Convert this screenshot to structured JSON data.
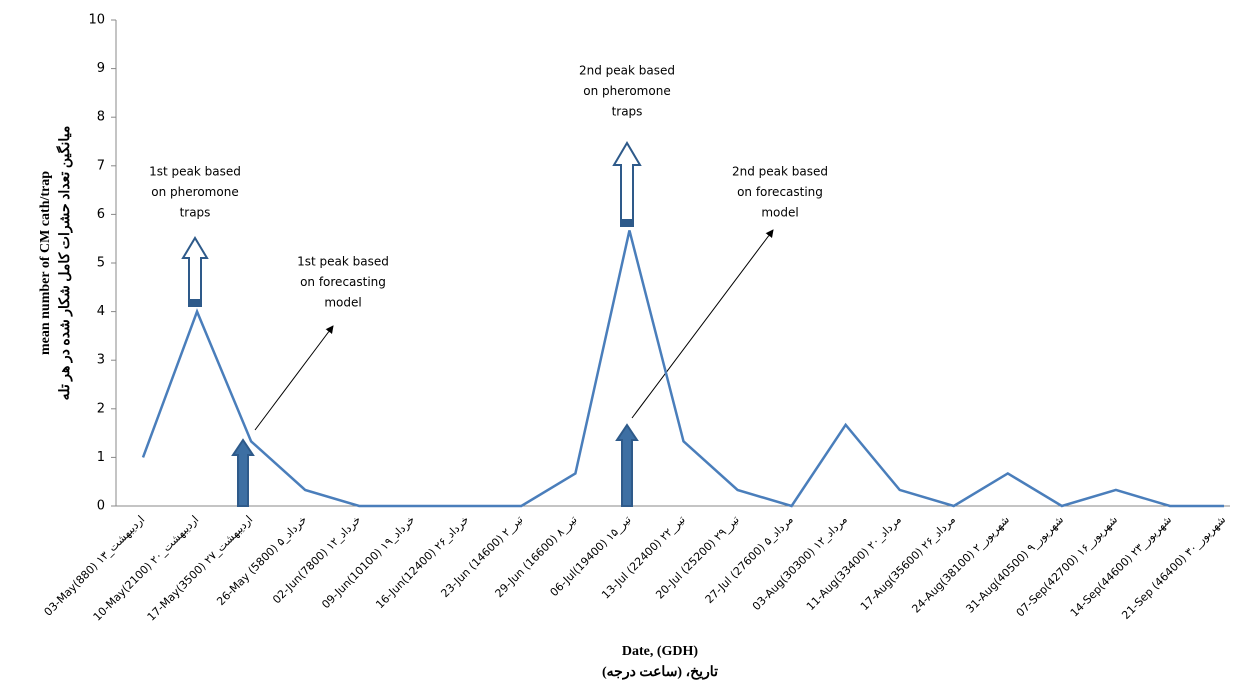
{
  "chart_data": {
    "type": "line",
    "categories": [
      "03-May(880) اردیبهشت_۱۳",
      "10-May(2100) اردیبهشت_۲۰",
      "17-May(3500) اردیبهشت_۲۷",
      "26-May (5800) خرداد_۵",
      "02-Jun(7800) خرداد_۱۲",
      "09-Jun(10100) خرداد_۱۹",
      "16-Jun(12400) خرداد_۲۶",
      "23-Jun (14600) تیر_۲",
      "29-Jun (16600) تیر_۸",
      "06-Jul(19400) تیر_۱۵",
      "13-Jul (22400) تیر_۲۲",
      "20-Jul (25200) تیر_۲۹",
      "27-Jul (27600) مرداد_۵",
      "03-Aug(30300) مرداد_۱۲",
      "11-Aug(33400) مرداد_۲۰",
      "17-Aug(35600) مرداد_۲۶",
      "24-Aug(38100) شهریور_۲",
      "31-Aug(40500) شهریور_۹",
      "07-Sep(42700) شهریور_۱۶",
      "14-Sep(44600) شهریور_۲۳",
      "21-Sep (46400) شهریور_۳۰"
    ],
    "series": [
      {
        "color": "#4a7ebb",
        "values": [
          1,
          4,
          1.33,
          0.33,
          0,
          0,
          0,
          0,
          0.67,
          5.67,
          1.33,
          0.33,
          0,
          1.67,
          0.33,
          0,
          0.67,
          0,
          0.33,
          0,
          0
        ]
      }
    ],
    "ylim": [
      0,
      10
    ],
    "yticks": [
      0,
      1,
      2,
      3,
      4,
      5,
      6,
      7,
      8,
      9,
      10
    ],
    "y_label": [
      "mean number of CM cath/trap",
      "میانگین تعداد حشرات کامل شکار شده در هر تله"
    ],
    "x_label": [
      "Date, (GDH)",
      "تاریخ، (ساعت درجه)"
    ],
    "annotations": [
      [
        "1st peak based",
        "on pheromone",
        "traps"
      ],
      [
        "1st peak based",
        "on forecasting",
        "model"
      ],
      [
        "2nd peak based",
        "on pheromone",
        "traps"
      ],
      [
        "2nd peak based",
        "on forecasting",
        "model"
      ]
    ]
  }
}
